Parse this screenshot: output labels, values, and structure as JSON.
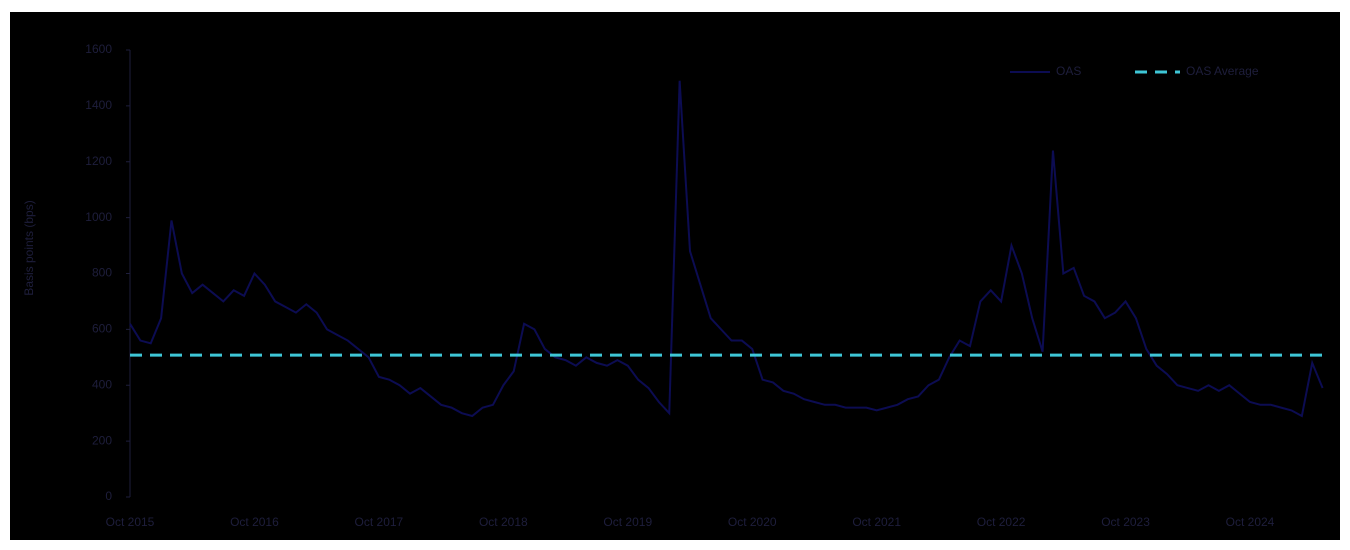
{
  "chart_data": {
    "type": "line",
    "y_label": "Basis points (bps)",
    "categories": [
      "Oct 2015",
      null,
      null,
      null,
      null,
      null,
      null,
      null,
      null,
      null,
      null,
      null,
      "Oct 2016",
      null,
      null,
      null,
      null,
      null,
      null,
      null,
      null,
      null,
      null,
      null,
      "Oct 2017",
      null,
      null,
      null,
      null,
      null,
      null,
      null,
      null,
      null,
      null,
      null,
      "Oct 2018",
      null,
      null,
      null,
      null,
      null,
      null,
      null,
      null,
      null,
      null,
      null,
      "Oct 2019",
      null,
      null,
      null,
      null,
      null,
      null,
      null,
      null,
      null,
      null,
      null,
      "Oct 2020",
      null,
      null,
      null,
      null,
      null,
      null,
      null,
      null,
      null,
      null,
      null,
      "Oct 2021",
      null,
      null,
      null,
      null,
      null,
      null,
      null,
      null,
      null,
      null,
      null,
      "Oct 2022",
      null,
      null,
      null,
      null,
      null,
      null,
      null,
      null,
      null,
      null,
      null,
      "Oct 2023",
      null,
      null,
      null,
      null,
      null,
      null,
      null,
      null,
      null,
      null,
      null,
      "Oct 2024",
      null,
      null,
      null,
      null,
      null,
      null,
      null
    ],
    "series": [
      {
        "name": "OAS",
        "color": "#0c0c52",
        "values": [
          620,
          560,
          550,
          640,
          990,
          800,
          730,
          760,
          730,
          700,
          740,
          720,
          800,
          760,
          700,
          680,
          660,
          690,
          660,
          600,
          580,
          560,
          530,
          500,
          430,
          420,
          400,
          370,
          390,
          360,
          330,
          320,
          300,
          290,
          320,
          330,
          400,
          450,
          620,
          600,
          530,
          500,
          490,
          470,
          500,
          480,
          470,
          490,
          470,
          420,
          390,
          340,
          300,
          1490,
          880,
          760,
          640,
          600,
          560,
          560,
          530,
          420,
          410,
          380,
          370,
          350,
          340,
          330,
          330,
          320,
          320,
          320,
          310,
          320,
          330,
          350,
          360,
          400,
          420,
          500,
          560,
          540,
          700,
          740,
          700,
          900,
          800,
          640,
          520,
          1240,
          800,
          820,
          720,
          700,
          640,
          660,
          700,
          640,
          530,
          470,
          440,
          400,
          390,
          380,
          400,
          380,
          400,
          370,
          340,
          330,
          330,
          320,
          310,
          290,
          480,
          390
        ]
      }
    ],
    "average": {
      "name": "OAS Average",
      "color": "#3ec6d6",
      "value": 508
    },
    "ylim": [
      0,
      1600
    ],
    "yticks": [
      0,
      200,
      400,
      600,
      800,
      1000,
      1200,
      1400,
      1600
    ],
    "legend": "top-right"
  }
}
